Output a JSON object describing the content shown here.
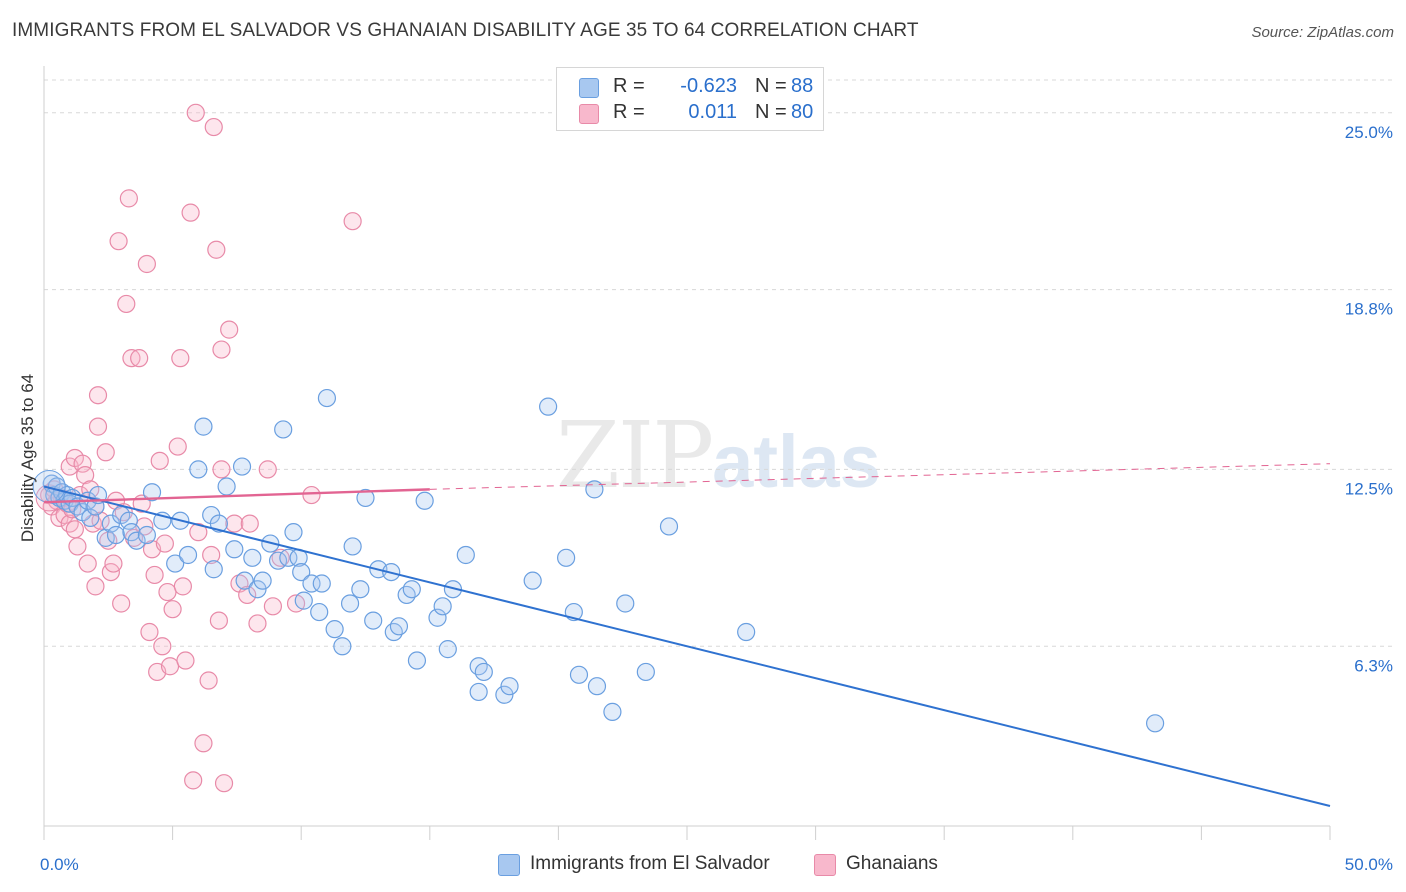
{
  "header": {
    "title": "IMMIGRANTS FROM EL SALVADOR VS GHANAIAN DISABILITY AGE 35 TO 64 CORRELATION CHART",
    "source": "Source: ZipAtlas.com"
  },
  "watermark": {
    "zip": "ZIP",
    "atlas": "atlas"
  },
  "legend": {
    "rows": [
      {
        "r_label": "R =",
        "r_value": "-0.623",
        "n_label": "N =",
        "n_value": "88"
      },
      {
        "r_label": "R =",
        "r_value": "0.011",
        "n_label": "N =",
        "n_value": "80"
      }
    ]
  },
  "bottom_legend": {
    "items": [
      {
        "label": "Immigrants from El Salvador"
      },
      {
        "label": "Ghanaians"
      }
    ]
  },
  "colors": {
    "blue_fill": "#a8c8f0",
    "blue_stroke": "#6a9fe0",
    "blue_line": "#2f72d0",
    "pink_fill": "#f8b8cc",
    "pink_stroke": "#e88aa8",
    "pink_line": "#e26492",
    "axis_text": "#2a6fcc",
    "grid": "#d8d8d8"
  },
  "chart_data": {
    "type": "scatter",
    "title": "IMMIGRANTS FROM EL SALVADOR VS GHANAIAN DISABILITY AGE 35 TO 64 CORRELATION CHART",
    "xlabel": "",
    "ylabel": "Disability Age 35 to 64",
    "xlim": [
      0,
      50
    ],
    "ylim": [
      0,
      26.5
    ],
    "x_tick_labels": [
      {
        "value": 0,
        "label": "0.0%"
      },
      {
        "value": 50,
        "label": "50.0%"
      }
    ],
    "y_tick_labels": [
      {
        "value": 6.3,
        "label": "6.3%"
      },
      {
        "value": 12.5,
        "label": "12.5%"
      },
      {
        "value": 18.8,
        "label": "18.8%"
      },
      {
        "value": 25.0,
        "label": "25.0%"
      }
    ],
    "grid": true,
    "legend_position": "top-center",
    "series": [
      {
        "name": "Immigrants from El Salvador",
        "r": -0.623,
        "n": 88,
        "trend": {
          "x": [
            0,
            50
          ],
          "y": [
            11.9,
            0.7
          ],
          "style": "solid"
        },
        "points": [
          [
            0.3,
            12.0
          ],
          [
            0.4,
            11.6
          ],
          [
            0.5,
            11.9
          ],
          [
            0.6,
            11.5
          ],
          [
            0.7,
            11.7
          ],
          [
            0.8,
            11.4
          ],
          [
            0.9,
            11.6
          ],
          [
            1.0,
            11.3
          ],
          [
            1.1,
            11.5
          ],
          [
            1.3,
            11.2
          ],
          [
            1.5,
            11.0
          ],
          [
            1.7,
            11.4
          ],
          [
            1.8,
            10.8
          ],
          [
            2.0,
            11.2
          ],
          [
            2.1,
            11.6
          ],
          [
            2.4,
            10.1
          ],
          [
            2.6,
            10.6
          ],
          [
            2.8,
            10.2
          ],
          [
            3.0,
            10.9
          ],
          [
            3.3,
            10.7
          ],
          [
            3.4,
            10.3
          ],
          [
            3.6,
            10.0
          ],
          [
            4.0,
            10.2
          ],
          [
            4.2,
            11.7
          ],
          [
            4.6,
            10.7
          ],
          [
            5.1,
            9.2
          ],
          [
            5.3,
            10.7
          ],
          [
            5.6,
            9.5
          ],
          [
            6.0,
            12.5
          ],
          [
            6.2,
            14.0
          ],
          [
            6.5,
            10.9
          ],
          [
            6.6,
            9.0
          ],
          [
            6.8,
            10.6
          ],
          [
            7.1,
            11.9
          ],
          [
            7.4,
            9.7
          ],
          [
            7.7,
            12.6
          ],
          [
            7.8,
            8.6
          ],
          [
            8.1,
            9.4
          ],
          [
            8.3,
            8.3
          ],
          [
            8.5,
            8.6
          ],
          [
            8.8,
            9.9
          ],
          [
            9.1,
            9.3
          ],
          [
            9.3,
            13.9
          ],
          [
            9.5,
            9.4
          ],
          [
            9.7,
            10.3
          ],
          [
            9.9,
            9.4
          ],
          [
            10.0,
            8.9
          ],
          [
            10.1,
            7.9
          ],
          [
            10.4,
            8.5
          ],
          [
            10.7,
            7.5
          ],
          [
            10.8,
            8.5
          ],
          [
            11.0,
            15.0
          ],
          [
            11.3,
            6.9
          ],
          [
            11.6,
            6.3
          ],
          [
            11.9,
            7.8
          ],
          [
            12.0,
            9.8
          ],
          [
            12.3,
            8.3
          ],
          [
            12.5,
            11.5
          ],
          [
            12.8,
            7.2
          ],
          [
            13.0,
            9.0
          ],
          [
            13.5,
            8.9
          ],
          [
            13.6,
            6.8
          ],
          [
            13.8,
            7.0
          ],
          [
            14.1,
            8.1
          ],
          [
            14.3,
            8.3
          ],
          [
            14.5,
            5.8
          ],
          [
            14.8,
            11.4
          ],
          [
            15.3,
            7.3
          ],
          [
            15.5,
            7.7
          ],
          [
            15.7,
            6.2
          ],
          [
            15.9,
            8.3
          ],
          [
            16.4,
            9.5
          ],
          [
            16.9,
            5.6
          ],
          [
            16.9,
            4.7
          ],
          [
            17.1,
            5.4
          ],
          [
            17.9,
            4.6
          ],
          [
            18.1,
            4.9
          ],
          [
            19.0,
            8.6
          ],
          [
            19.6,
            14.7
          ],
          [
            20.3,
            9.4
          ],
          [
            20.6,
            7.5
          ],
          [
            20.8,
            5.3
          ],
          [
            21.4,
            11.8
          ],
          [
            21.5,
            4.9
          ],
          [
            22.1,
            4.0
          ],
          [
            22.6,
            7.8
          ],
          [
            23.4,
            5.4
          ],
          [
            24.3,
            10.5
          ],
          [
            27.3,
            6.8
          ],
          [
            43.2,
            3.6
          ]
        ]
      },
      {
        "name": "Ghanaians",
        "r": 0.011,
        "n": 80,
        "trend": {
          "x": [
            0,
            15
          ],
          "y": [
            11.35,
            11.8
          ],
          "style": "solid",
          "dashed_to": [
            50,
            12.7
          ]
        },
        "points": [
          [
            0.2,
            11.6
          ],
          [
            0.3,
            11.2
          ],
          [
            0.4,
            11.8
          ],
          [
            0.5,
            11.4
          ],
          [
            0.6,
            10.8
          ],
          [
            0.7,
            11.5
          ],
          [
            0.8,
            10.9
          ],
          [
            0.9,
            11.3
          ],
          [
            1.0,
            10.6
          ],
          [
            1.0,
            12.6
          ],
          [
            1.1,
            11.1
          ],
          [
            1.2,
            10.4
          ],
          [
            1.2,
            12.9
          ],
          [
            1.3,
            9.8
          ],
          [
            1.4,
            11.6
          ],
          [
            1.5,
            12.7
          ],
          [
            1.6,
            12.3
          ],
          [
            1.7,
            9.2
          ],
          [
            1.8,
            11.8
          ],
          [
            1.9,
            10.6
          ],
          [
            2.0,
            8.4
          ],
          [
            2.0,
            11.2
          ],
          [
            2.1,
            14.0
          ],
          [
            2.1,
            15.1
          ],
          [
            2.2,
            10.7
          ],
          [
            2.4,
            13.1
          ],
          [
            2.5,
            10.0
          ],
          [
            2.6,
            8.9
          ],
          [
            2.7,
            9.2
          ],
          [
            2.8,
            11.4
          ],
          [
            2.9,
            20.5
          ],
          [
            3.0,
            7.8
          ],
          [
            3.1,
            11.0
          ],
          [
            3.2,
            18.3
          ],
          [
            3.3,
            22.0
          ],
          [
            3.4,
            16.4
          ],
          [
            3.5,
            10.1
          ],
          [
            3.7,
            16.4
          ],
          [
            3.8,
            11.3
          ],
          [
            3.9,
            10.5
          ],
          [
            4.0,
            19.7
          ],
          [
            4.1,
            6.8
          ],
          [
            4.2,
            9.7
          ],
          [
            4.3,
            8.8
          ],
          [
            4.4,
            5.4
          ],
          [
            4.5,
            12.8
          ],
          [
            4.6,
            6.3
          ],
          [
            4.7,
            9.9
          ],
          [
            4.8,
            8.2
          ],
          [
            4.9,
            5.6
          ],
          [
            5.0,
            7.6
          ],
          [
            5.2,
            13.3
          ],
          [
            5.3,
            16.4
          ],
          [
            5.4,
            8.4
          ],
          [
            5.5,
            5.8
          ],
          [
            5.7,
            21.5
          ],
          [
            5.8,
            1.6
          ],
          [
            5.9,
            25.0
          ],
          [
            6.0,
            10.3
          ],
          [
            6.2,
            2.9
          ],
          [
            6.4,
            5.1
          ],
          [
            6.5,
            9.5
          ],
          [
            6.6,
            24.5
          ],
          [
            6.7,
            20.2
          ],
          [
            6.8,
            7.2
          ],
          [
            6.9,
            12.5
          ],
          [
            6.9,
            16.7
          ],
          [
            7.0,
            1.5
          ],
          [
            7.2,
            17.4
          ],
          [
            7.4,
            10.6
          ],
          [
            7.6,
            8.5
          ],
          [
            7.9,
            8.1
          ],
          [
            8.0,
            10.6
          ],
          [
            8.3,
            7.1
          ],
          [
            8.7,
            12.5
          ],
          [
            9.2,
            9.4
          ],
          [
            9.8,
            7.8
          ],
          [
            10.4,
            11.6
          ],
          [
            12.0,
            21.2
          ],
          [
            8.9,
            7.7
          ]
        ]
      }
    ]
  }
}
